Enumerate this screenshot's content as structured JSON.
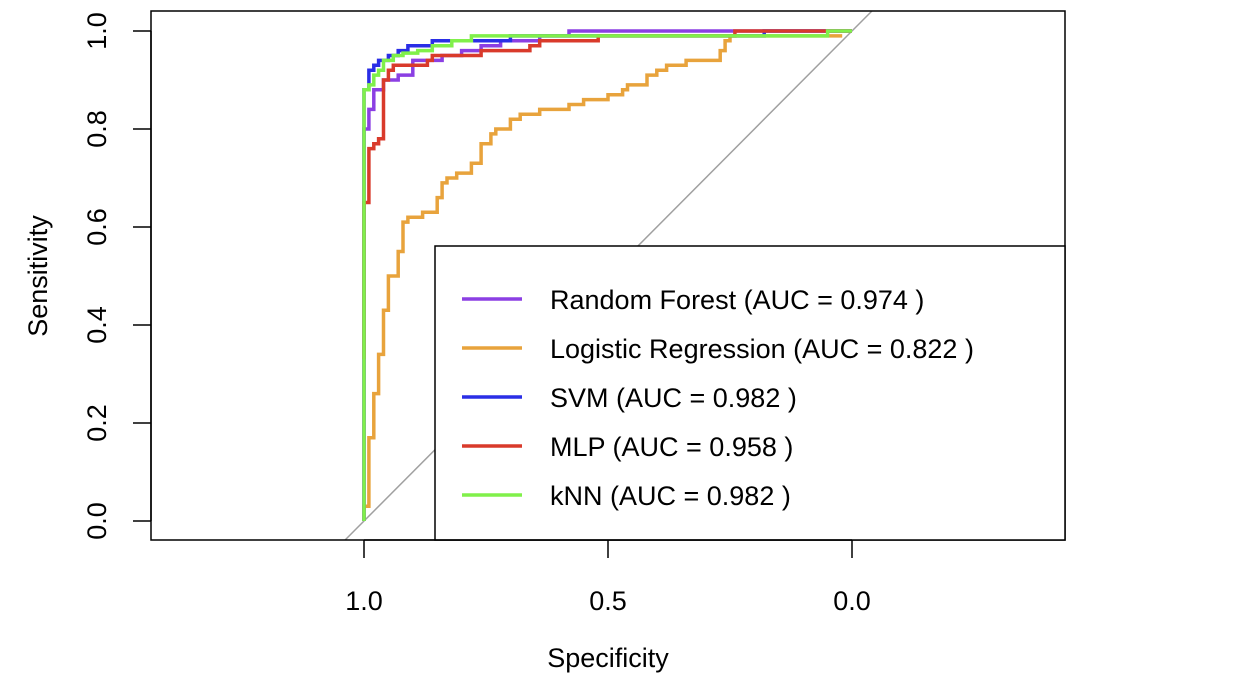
{
  "chart_data": {
    "type": "line",
    "title": "",
    "xlabel": "Specificity",
    "ylabel": "Sensitivity",
    "x_reversed": true,
    "xlim": [
      1.0,
      0.0
    ],
    "ylim": [
      0.0,
      1.0
    ],
    "x_ticks": [
      {
        "value": 1.0,
        "label": "1.0"
      },
      {
        "value": 0.5,
        "label": "0.5"
      },
      {
        "value": 0.0,
        "label": "0.0"
      }
    ],
    "y_ticks": [
      {
        "value": 0.0,
        "label": "0.0"
      },
      {
        "value": 0.2,
        "label": "0.2"
      },
      {
        "value": 0.4,
        "label": "0.4"
      },
      {
        "value": 0.6,
        "label": "0.6"
      },
      {
        "value": 0.8,
        "label": "0.8"
      },
      {
        "value": 1.0,
        "label": "1.0"
      }
    ],
    "reference_line": {
      "color": "#a0a0a0",
      "from": [
        1.0,
        0.0
      ],
      "to": [
        0.0,
        1.0
      ]
    },
    "grid": false,
    "legend_position": "bottom-right",
    "series": [
      {
        "name": "Random Forest (AUC = 0.974 )",
        "color": "#8b3fe3",
        "points": [
          [
            1.0,
            0.0
          ],
          [
            1.0,
            0.79
          ],
          [
            0.99,
            0.8
          ],
          [
            0.99,
            0.83
          ],
          [
            0.98,
            0.84
          ],
          [
            0.98,
            0.87
          ],
          [
            0.96,
            0.88
          ],
          [
            0.95,
            0.9
          ],
          [
            0.93,
            0.9
          ],
          [
            0.9,
            0.91
          ],
          [
            0.9,
            0.93
          ],
          [
            0.84,
            0.94
          ],
          [
            0.8,
            0.95
          ],
          [
            0.76,
            0.96
          ],
          [
            0.72,
            0.97
          ],
          [
            0.64,
            0.98
          ],
          [
            0.58,
            0.99
          ],
          [
            0.58,
            1.0
          ],
          [
            0.0,
            1.0
          ]
        ]
      },
      {
        "name": "Logistic Regression (AUC = 0.822 )",
        "color": "#e8a33c",
        "points": [
          [
            1.0,
            0.0
          ],
          [
            0.99,
            0.03
          ],
          [
            0.99,
            0.11
          ],
          [
            0.98,
            0.17
          ],
          [
            0.97,
            0.26
          ],
          [
            0.96,
            0.34
          ],
          [
            0.95,
            0.43
          ],
          [
            0.93,
            0.5
          ],
          [
            0.92,
            0.55
          ],
          [
            0.91,
            0.61
          ],
          [
            0.88,
            0.62
          ],
          [
            0.85,
            0.63
          ],
          [
            0.84,
            0.66
          ],
          [
            0.83,
            0.69
          ],
          [
            0.81,
            0.7
          ],
          [
            0.78,
            0.71
          ],
          [
            0.76,
            0.73
          ],
          [
            0.74,
            0.77
          ],
          [
            0.73,
            0.79
          ],
          [
            0.7,
            0.8
          ],
          [
            0.68,
            0.82
          ],
          [
            0.64,
            0.83
          ],
          [
            0.58,
            0.84
          ],
          [
            0.55,
            0.85
          ],
          [
            0.5,
            0.86
          ],
          [
            0.47,
            0.87
          ],
          [
            0.46,
            0.88
          ],
          [
            0.42,
            0.89
          ],
          [
            0.4,
            0.91
          ],
          [
            0.38,
            0.92
          ],
          [
            0.34,
            0.93
          ],
          [
            0.27,
            0.94
          ],
          [
            0.26,
            0.96
          ],
          [
            0.25,
            0.98
          ],
          [
            0.22,
            0.99
          ],
          [
            0.02,
            0.99
          ]
        ]
      },
      {
        "name": "SVM (AUC = 0.982 )",
        "color": "#2a2ee6",
        "points": [
          [
            1.0,
            0.0
          ],
          [
            1.0,
            0.85
          ],
          [
            0.99,
            0.88
          ],
          [
            0.99,
            0.91
          ],
          [
            0.98,
            0.92
          ],
          [
            0.97,
            0.93
          ],
          [
            0.95,
            0.94
          ],
          [
            0.93,
            0.95
          ],
          [
            0.91,
            0.96
          ],
          [
            0.86,
            0.97
          ],
          [
            0.82,
            0.98
          ],
          [
            0.7,
            0.98
          ],
          [
            0.6,
            0.99
          ],
          [
            0.18,
            0.99
          ],
          [
            0.0,
            1.0
          ]
        ]
      },
      {
        "name": "MLP (AUC = 0.958 )",
        "color": "#d93a2b",
        "points": [
          [
            1.0,
            0.33
          ],
          [
            1.0,
            0.62
          ],
          [
            0.99,
            0.65
          ],
          [
            0.98,
            0.76
          ],
          [
            0.97,
            0.77
          ],
          [
            0.96,
            0.78
          ],
          [
            0.96,
            0.88
          ],
          [
            0.95,
            0.9
          ],
          [
            0.94,
            0.92
          ],
          [
            0.91,
            0.93
          ],
          [
            0.87,
            0.93
          ],
          [
            0.86,
            0.94
          ],
          [
            0.81,
            0.95
          ],
          [
            0.76,
            0.95
          ],
          [
            0.66,
            0.96
          ],
          [
            0.64,
            0.97
          ],
          [
            0.52,
            0.98
          ],
          [
            0.5,
            0.99
          ],
          [
            0.24,
            0.99
          ],
          [
            0.23,
            1.0
          ],
          [
            0.0,
            1.0
          ]
        ]
      },
      {
        "name": "kNN (AUC = 0.982 )",
        "color": "#80f04a",
        "points": [
          [
            1.0,
            0.0
          ],
          [
            1.0,
            0.86
          ],
          [
            0.99,
            0.88
          ],
          [
            0.98,
            0.89
          ],
          [
            0.97,
            0.91
          ],
          [
            0.96,
            0.92
          ],
          [
            0.94,
            0.94
          ],
          [
            0.92,
            0.95
          ],
          [
            0.89,
            0.955
          ],
          [
            0.86,
            0.96
          ],
          [
            0.82,
            0.97
          ],
          [
            0.78,
            0.98
          ],
          [
            0.72,
            0.99
          ],
          [
            0.6,
            0.99
          ],
          [
            0.4,
            0.99
          ],
          [
            0.2,
            0.99
          ],
          [
            0.05,
            0.99
          ],
          [
            0.0,
            1.0
          ]
        ]
      }
    ]
  }
}
